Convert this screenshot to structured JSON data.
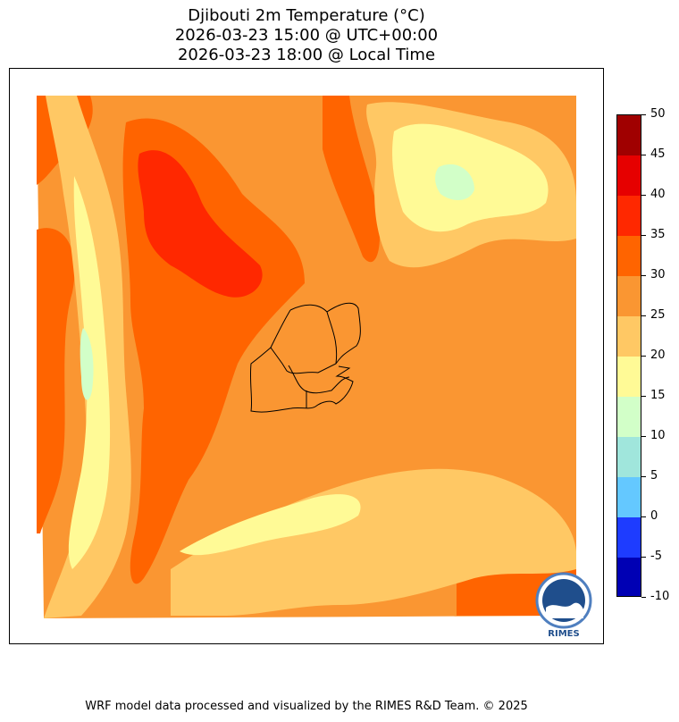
{
  "title": {
    "line1": "Djibouti 2m Temperature (°C)",
    "line2": "2026-03-23 15:00 @ UTC+00:00",
    "line3": "2026-03-23 18:00 @ Local Time"
  },
  "colorbar": {
    "ticks": [
      "50",
      "45",
      "40",
      "35",
      "30",
      "25",
      "20",
      "15",
      "10",
      "5",
      "0",
      "-5",
      "-10"
    ],
    "colors_top_to_bottom": [
      "#a00000",
      "#e60000",
      "#ff2800",
      "#ff6400",
      "#fa9632",
      "#ffc864",
      "#fffa96",
      "#d2ffc8",
      "#a0e6dc",
      "#64c8ff",
      "#1e3cff",
      "#0000b4"
    ]
  },
  "map": {
    "palette": {
      "t30_35": "#fa9632",
      "t35_40": "#ff6400",
      "t40_45": "#ff2800",
      "t25_30": "#ffc864",
      "t20_25": "#fffa96",
      "t15_20": "#d2ffc8"
    },
    "region": "Djibouti"
  },
  "logo": {
    "text": "RIMES"
  },
  "footer": "WRF model data processed and visualized by the RIMES R&D Team. © 2025"
}
